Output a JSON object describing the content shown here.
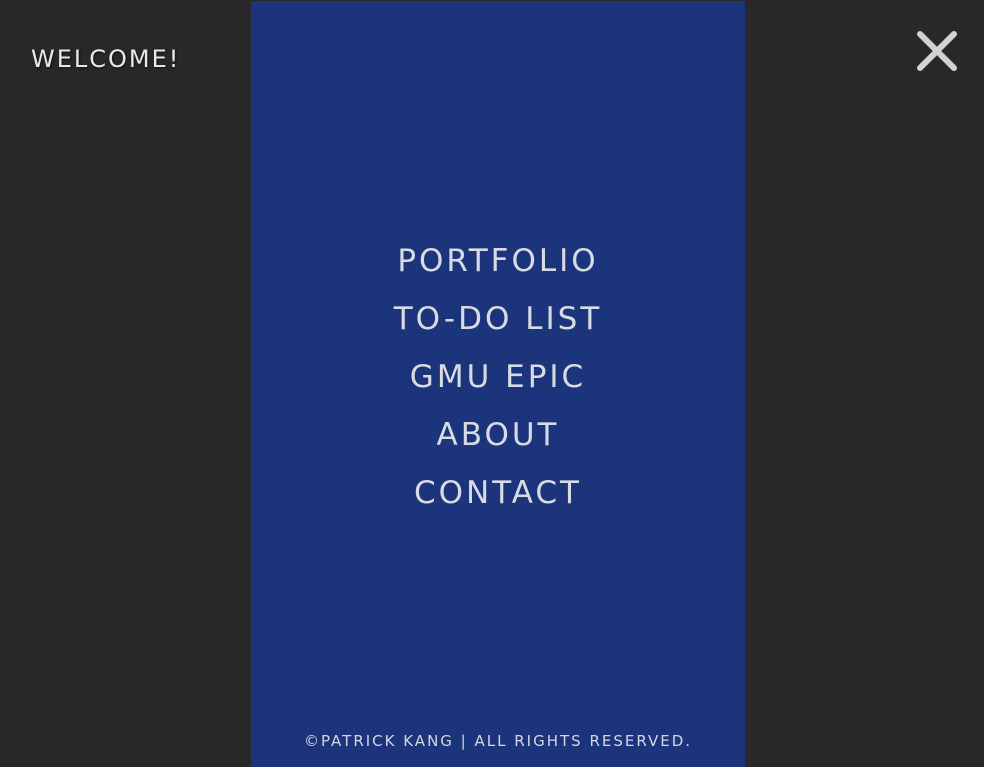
{
  "header": {
    "welcome_text": "WELCOME!",
    "close_icon": "close-icon"
  },
  "menu": {
    "items": [
      {
        "label": "PORTFOLIO"
      },
      {
        "label": "TO-DO LIST"
      },
      {
        "label": "GMU EPIC"
      },
      {
        "label": "ABOUT"
      },
      {
        "label": "CONTACT"
      }
    ]
  },
  "footer": {
    "text": "©PATRICK KANG | ALL RIGHTS RESERVED."
  },
  "colors": {
    "background": "#282828",
    "panel": "#1b347c",
    "text": "#d9dbe3"
  }
}
